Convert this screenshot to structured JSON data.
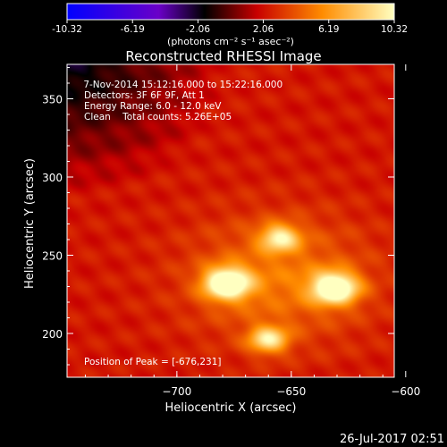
{
  "colorbar": {
    "tick_labels": [
      "-10.32",
      "-6.19",
      "-2.06",
      "2.06",
      "6.19",
      "10.32"
    ],
    "tick_values": [
      -10.32,
      -6.19,
      -2.06,
      2.06,
      6.19,
      10.32
    ],
    "range": [
      -10.32,
      10.32
    ],
    "units_label": "(photons cm⁻² s⁻¹ asec⁻²)",
    "colors": [
      "#0000ff",
      "#5a00b4",
      "#000000",
      "#d01000",
      "#ff8c00",
      "#ffff80"
    ]
  },
  "chart_data": {
    "type": "heatmap",
    "title": "Reconstructed RHESSI Image",
    "xlabel": "Heliocentric X (arcsec)",
    "ylabel": "Heliocentric Y (arcsec)",
    "xlim": [
      -748,
      -605
    ],
    "ylim": [
      172,
      372
    ],
    "xticks": [
      -700,
      -650,
      -600
    ],
    "xtick_labels": [
      "−700",
      "−650",
      "−600"
    ],
    "yticks": [
      200,
      250,
      300,
      350
    ],
    "ytick_labels": [
      "200",
      "250",
      "300",
      "350"
    ],
    "sources": [
      {
        "x": -678,
        "y": 232,
        "intensity": 10.3,
        "sigma": 7
      },
      {
        "x": -631,
        "y": 229,
        "intensity": 10.0,
        "sigma": 7
      },
      {
        "x": -655,
        "y": 261,
        "intensity": 6.4,
        "sigma": 6
      },
      {
        "x": -660,
        "y": 196,
        "intensity": 6.6,
        "sigma": 6
      },
      {
        "x": -655,
        "y": 235,
        "intensity": 5.8,
        "sigma": 28
      }
    ],
    "background_level": 2.3,
    "annotations": {
      "time_range": " 7-Nov-2014 15:12:16.000 to 15:22:16.000",
      "detectors": "Detectors: 3F 6F 9F, Att 1",
      "energy": "Energy Range: 6.0 - 12.0 keV",
      "clean": "Clean    Total counts: 5.26E+05",
      "peak": "Position of Peak = [-676,231]"
    }
  },
  "footer": {
    "timestamp": "26-Jul-2017 02:51"
  }
}
